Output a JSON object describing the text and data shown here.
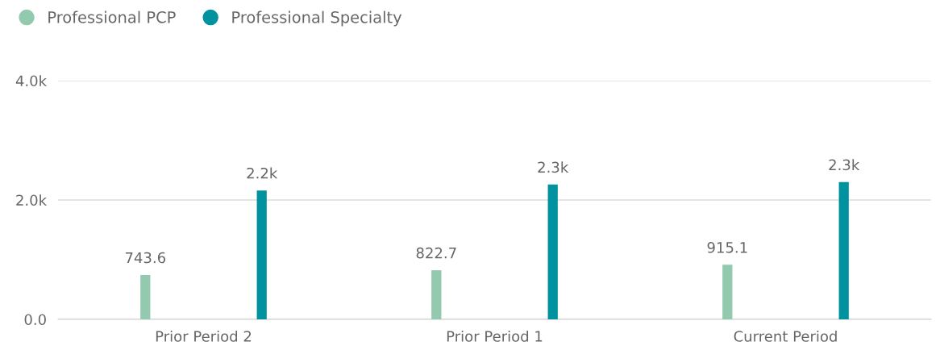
{
  "chart_data": {
    "type": "bar",
    "categories": [
      "Prior Period 2",
      "Prior Period 1",
      "Current Period"
    ],
    "series": [
      {
        "name": "Professional PCP",
        "color": "#93c9ae",
        "values": [
          743.6,
          822.7,
          915.1
        ],
        "value_labels": [
          "743.6",
          "822.7",
          "915.1"
        ]
      },
      {
        "name": "Professional Specialty",
        "color": "#00939f",
        "values": [
          2160,
          2260,
          2300
        ],
        "value_labels": [
          "2.2k",
          "2.3k",
          "2.3k"
        ]
      }
    ],
    "ylim": [
      0,
      4000
    ],
    "yticks": [
      {
        "value": 0,
        "label": "0.0"
      },
      {
        "value": 2000,
        "label": "2.0k"
      },
      {
        "value": 4000,
        "label": "4.0k"
      }
    ],
    "grid": "y",
    "legend": "top left"
  }
}
